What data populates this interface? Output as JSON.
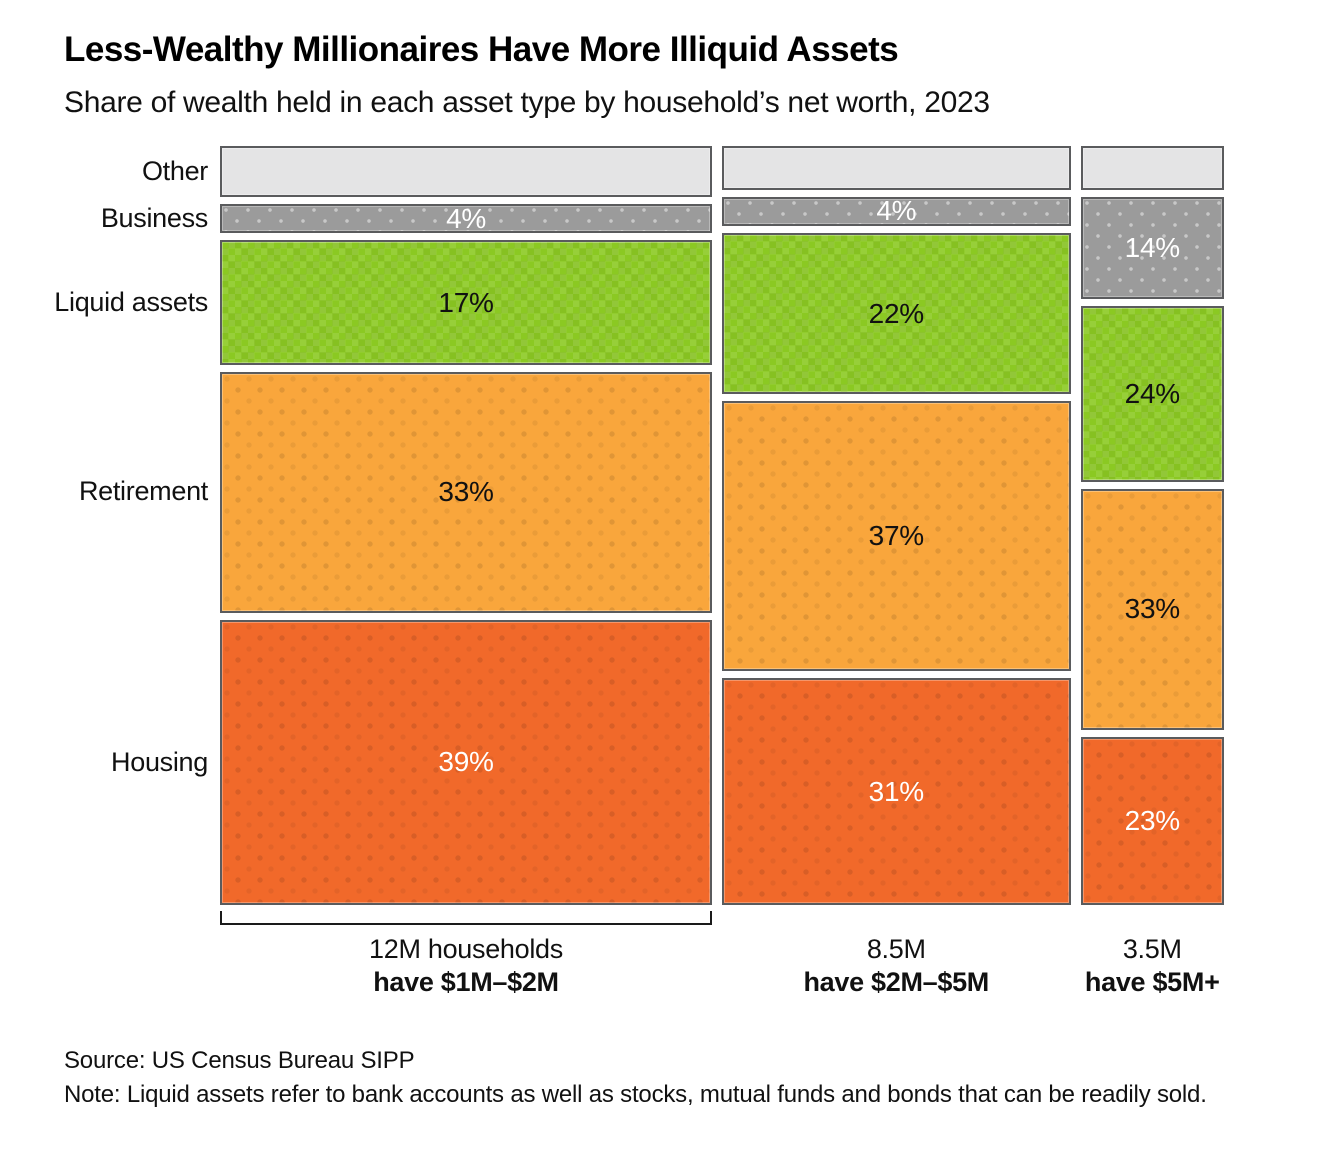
{
  "chart_data": {
    "type": "mosaic",
    "title": "Less-Wealthy Millionaires Have More Illiquid Assets",
    "subtitle": "Share of wealth held in each asset type by household’s net worth, 2023",
    "value_unit": "% share of wealth",
    "row_labels": [
      "Other",
      "Business",
      "Liquid assets",
      "Retirement",
      "Housing"
    ],
    "category_styles": {
      "Other": {
        "fill": "#e4e4e5",
        "label_color": "#111111",
        "pattern": "none"
      },
      "Business": {
        "fill": "#9b9b9b",
        "label_color": "#ffffff",
        "pattern": "light-dots"
      },
      "Liquid assets": {
        "fill": "#8bc922",
        "label_color": "#111111",
        "pattern": "camo"
      },
      "Retirement": {
        "fill": "#f9a63c",
        "label_color": "#111111",
        "pattern": "dark-dots"
      },
      "Housing": {
        "fill": "#f1692a",
        "label_color": "#ffffff",
        "pattern": "dark-dots"
      }
    },
    "columns": [
      {
        "households_millions": 12,
        "footer_line1": "12M households",
        "footer_line2": "have $1M–$2M",
        "bracket": true,
        "segments": [
          {
            "category": "Other",
            "value": 7,
            "label": ""
          },
          {
            "category": "Business",
            "value": 4,
            "label": "4%"
          },
          {
            "category": "Liquid assets",
            "value": 17,
            "label": "17%"
          },
          {
            "category": "Retirement",
            "value": 33,
            "label": "33%"
          },
          {
            "category": "Housing",
            "value": 39,
            "label": "39%"
          }
        ]
      },
      {
        "households_millions": 8.5,
        "footer_line1": "8.5M",
        "footer_line2": "have $2M–$5M",
        "bracket": false,
        "segments": [
          {
            "category": "Other",
            "value": 6,
            "label": ""
          },
          {
            "category": "Business",
            "value": 4,
            "label": "4%"
          },
          {
            "category": "Liquid assets",
            "value": 22,
            "label": "22%"
          },
          {
            "category": "Retirement",
            "value": 37,
            "label": "37%"
          },
          {
            "category": "Housing",
            "value": 31,
            "label": "31%"
          }
        ]
      },
      {
        "households_millions": 3.5,
        "footer_line1": "3.5M",
        "footer_line2": "have $5M+",
        "bracket": false,
        "segments": [
          {
            "category": "Other",
            "value": 6,
            "label": ""
          },
          {
            "category": "Business",
            "value": 14,
            "label": "14%"
          },
          {
            "category": "Liquid assets",
            "value": 24,
            "label": "24%"
          },
          {
            "category": "Retirement",
            "value": 33,
            "label": "33%"
          },
          {
            "category": "Housing",
            "value": 23,
            "label": "23%"
          }
        ]
      }
    ]
  },
  "footer": {
    "source": "Source: US Census Bureau SIPP",
    "note": "Note: Liquid assets refer to bank accounts as well as stocks, mutual funds and bonds that can be readily sold."
  }
}
